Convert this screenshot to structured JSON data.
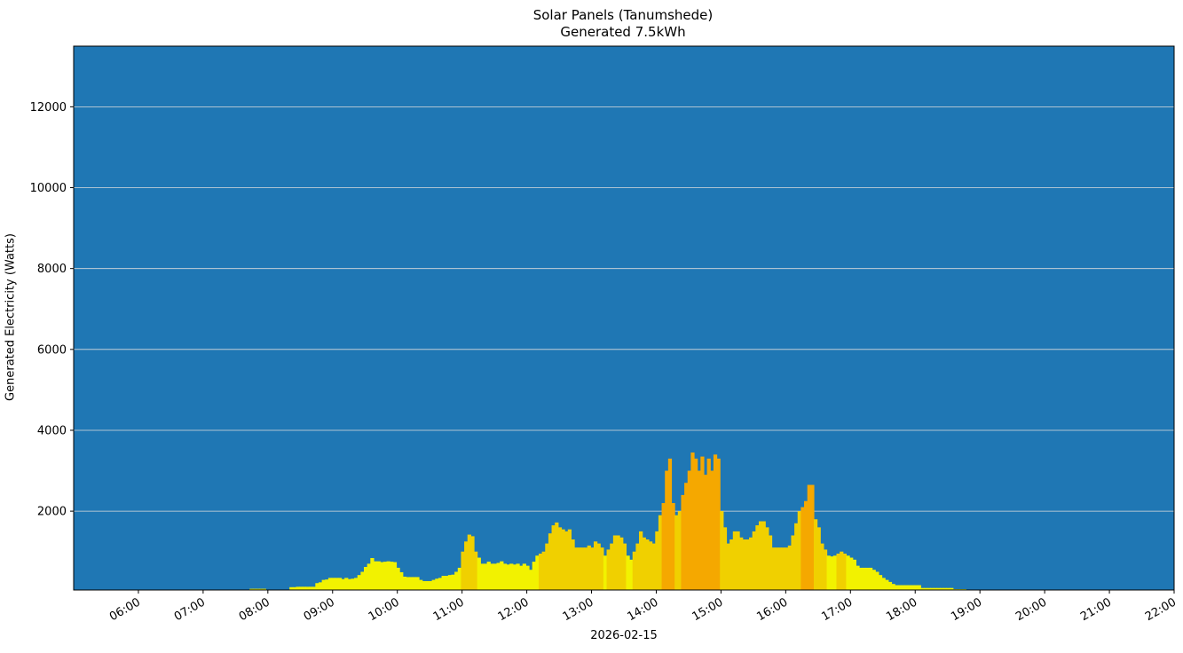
{
  "title_line1": "Solar Panels (Tanumshede)",
  "title_line2": "Generated 7.5kWh",
  "ylabel": "Generated Electricity (Watts)",
  "xlabel": "2026-02-15",
  "colors": {
    "background": "#1f77b4",
    "grid": "#dddddd",
    "low": "#f2f200",
    "mid": "#f0d000",
    "high": "#f5a800"
  },
  "chart_data": {
    "type": "bar",
    "title": "Solar Panels (Tanumshede)\nGenerated 7.5kWh",
    "xlabel": "2026-02-15",
    "ylabel": "Generated Electricity (Watts)",
    "xlim": [
      "05:00",
      "22:00"
    ],
    "ylim": [
      50,
      13500
    ],
    "grid": "horizontal",
    "yticks": [
      2000,
      4000,
      6000,
      8000,
      10000,
      12000
    ],
    "xticks": [
      "06:00",
      "07:00",
      "08:00",
      "09:00",
      "10:00",
      "11:00",
      "12:00",
      "13:00",
      "14:00",
      "15:00",
      "16:00",
      "17:00",
      "18:00",
      "19:00",
      "20:00",
      "21:00",
      "22:00"
    ],
    "bar_width_minutes": 2.5,
    "points": [
      [
        463,
        80
      ],
      [
        466,
        80
      ],
      [
        469,
        80
      ],
      [
        472,
        80
      ],
      [
        475,
        80
      ],
      [
        485,
        60
      ],
      [
        488,
        60
      ],
      [
        491,
        60
      ],
      [
        494,
        60
      ],
      [
        500,
        120
      ],
      [
        503,
        120
      ],
      [
        506,
        130
      ],
      [
        509,
        130
      ],
      [
        512,
        130
      ],
      [
        515,
        130
      ],
      [
        518,
        130
      ],
      [
        521,
        130
      ],
      [
        524,
        220
      ],
      [
        527,
        240
      ],
      [
        530,
        300
      ],
      [
        533,
        310
      ],
      [
        536,
        350
      ],
      [
        539,
        350
      ],
      [
        542,
        350
      ],
      [
        545,
        350
      ],
      [
        548,
        320
      ],
      [
        551,
        350
      ],
      [
        554,
        320
      ],
      [
        557,
        330
      ],
      [
        560,
        350
      ],
      [
        563,
        420
      ],
      [
        566,
        500
      ],
      [
        569,
        620
      ],
      [
        572,
        700
      ],
      [
        575,
        840
      ],
      [
        578,
        760
      ],
      [
        581,
        760
      ],
      [
        584,
        740
      ],
      [
        587,
        750
      ],
      [
        590,
        760
      ],
      [
        593,
        750
      ],
      [
        596,
        740
      ],
      [
        599,
        600
      ],
      [
        602,
        490
      ],
      [
        605,
        380
      ],
      [
        608,
        370
      ],
      [
        611,
        370
      ],
      [
        614,
        370
      ],
      [
        617,
        370
      ],
      [
        620,
        300
      ],
      [
        623,
        270
      ],
      [
        626,
        270
      ],
      [
        629,
        270
      ],
      [
        632,
        300
      ],
      [
        635,
        330
      ],
      [
        638,
        350
      ],
      [
        641,
        400
      ],
      [
        644,
        400
      ],
      [
        647,
        420
      ],
      [
        650,
        430
      ],
      [
        653,
        500
      ],
      [
        656,
        600
      ],
      [
        659,
        1000
      ],
      [
        662,
        1250
      ],
      [
        665,
        1420
      ],
      [
        668,
        1380
      ],
      [
        671,
        1000
      ],
      [
        674,
        850
      ],
      [
        677,
        700
      ],
      [
        680,
        700
      ],
      [
        683,
        750
      ],
      [
        686,
        700
      ],
      [
        689,
        700
      ],
      [
        692,
        720
      ],
      [
        695,
        760
      ],
      [
        698,
        700
      ],
      [
        701,
        680
      ],
      [
        704,
        700
      ],
      [
        707,
        680
      ],
      [
        710,
        700
      ],
      [
        713,
        650
      ],
      [
        716,
        700
      ],
      [
        719,
        650
      ],
      [
        722,
        550
      ],
      [
        725,
        750
      ],
      [
        728,
        900
      ],
      [
        731,
        950
      ],
      [
        734,
        1000
      ],
      [
        737,
        1200
      ],
      [
        740,
        1450
      ],
      [
        743,
        1650
      ],
      [
        746,
        1720
      ],
      [
        749,
        1600
      ],
      [
        752,
        1550
      ],
      [
        755,
        1500
      ],
      [
        758,
        1550
      ],
      [
        761,
        1300
      ],
      [
        764,
        1100
      ],
      [
        767,
        1100
      ],
      [
        770,
        1100
      ],
      [
        773,
        1100
      ],
      [
        776,
        1150
      ],
      [
        779,
        1100
      ],
      [
        782,
        1250
      ],
      [
        785,
        1200
      ],
      [
        788,
        1100
      ],
      [
        791,
        900
      ],
      [
        794,
        1050
      ],
      [
        797,
        1200
      ],
      [
        800,
        1400
      ],
      [
        803,
        1400
      ],
      [
        806,
        1350
      ],
      [
        809,
        1200
      ],
      [
        812,
        900
      ],
      [
        815,
        800
      ],
      [
        818,
        1000
      ],
      [
        821,
        1200
      ],
      [
        824,
        1500
      ],
      [
        827,
        1350
      ],
      [
        830,
        1300
      ],
      [
        833,
        1250
      ],
      [
        836,
        1200
      ],
      [
        839,
        1500
      ],
      [
        842,
        1900
      ],
      [
        845,
        2200
      ],
      [
        848,
        3000
      ],
      [
        851,
        3300
      ],
      [
        854,
        2200
      ],
      [
        857,
        1900
      ],
      [
        860,
        2000
      ],
      [
        863,
        2400
      ],
      [
        866,
        2700
      ],
      [
        869,
        3000
      ],
      [
        872,
        3450
      ],
      [
        875,
        3300
      ],
      [
        878,
        3000
      ],
      [
        881,
        3350
      ],
      [
        884,
        2900
      ],
      [
        887,
        3300
      ],
      [
        890,
        3000
      ],
      [
        893,
        3400
      ],
      [
        896,
        3300
      ],
      [
        899,
        2000
      ],
      [
        902,
        1600
      ],
      [
        905,
        1200
      ],
      [
        908,
        1300
      ],
      [
        911,
        1500
      ],
      [
        914,
        1500
      ],
      [
        917,
        1350
      ],
      [
        920,
        1300
      ],
      [
        923,
        1300
      ],
      [
        926,
        1350
      ],
      [
        929,
        1500
      ],
      [
        932,
        1650
      ],
      [
        935,
        1750
      ],
      [
        938,
        1750
      ],
      [
        941,
        1600
      ],
      [
        944,
        1400
      ],
      [
        947,
        1100
      ],
      [
        950,
        1100
      ],
      [
        953,
        1100
      ],
      [
        956,
        1100
      ],
      [
        959,
        1100
      ],
      [
        962,
        1150
      ],
      [
        965,
        1400
      ],
      [
        968,
        1700
      ],
      [
        971,
        2000
      ],
      [
        974,
        2100
      ],
      [
        977,
        2250
      ],
      [
        980,
        2650
      ],
      [
        983,
        2650
      ],
      [
        986,
        1800
      ],
      [
        989,
        1600
      ],
      [
        992,
        1200
      ],
      [
        995,
        1050
      ],
      [
        998,
        900
      ],
      [
        1001,
        880
      ],
      [
        1004,
        900
      ],
      [
        1007,
        950
      ],
      [
        1010,
        1000
      ],
      [
        1013,
        950
      ],
      [
        1016,
        900
      ],
      [
        1019,
        850
      ],
      [
        1022,
        800
      ],
      [
        1025,
        650
      ],
      [
        1028,
        600
      ],
      [
        1031,
        600
      ],
      [
        1034,
        600
      ],
      [
        1037,
        600
      ],
      [
        1040,
        550
      ],
      [
        1043,
        500
      ],
      [
        1046,
        420
      ],
      [
        1049,
        350
      ],
      [
        1052,
        300
      ],
      [
        1055,
        250
      ],
      [
        1058,
        200
      ],
      [
        1061,
        170
      ],
      [
        1064,
        170
      ],
      [
        1067,
        170
      ],
      [
        1070,
        170
      ],
      [
        1073,
        170
      ],
      [
        1076,
        170
      ],
      [
        1079,
        170
      ],
      [
        1082,
        170
      ],
      [
        1085,
        100
      ],
      [
        1088,
        100
      ],
      [
        1091,
        100
      ],
      [
        1094,
        100
      ],
      [
        1097,
        100
      ],
      [
        1100,
        100
      ],
      [
        1103,
        100
      ],
      [
        1106,
        100
      ],
      [
        1109,
        100
      ],
      [
        1112,
        100
      ],
      [
        1115,
        70
      ],
      [
        1118,
        70
      ],
      [
        1121,
        70
      ],
      [
        1124,
        70
      ],
      [
        1127,
        40
      ],
      [
        1130,
        40
      ]
    ]
  }
}
